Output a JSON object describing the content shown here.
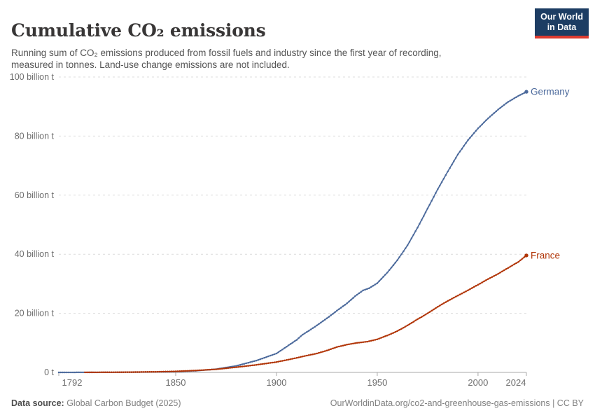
{
  "header": {
    "title": "Cumulative CO₂ emissions",
    "subtitle": "Running sum of CO₂ emissions produced from fossil fuels and industry since the first year of recording,\nmeasured in tonnes. Land-use change emissions are not included."
  },
  "logo": {
    "line1": "Our World",
    "line2": "in Data",
    "bg_color": "#1d3d63",
    "accent_color": "#dc3a2f"
  },
  "footer": {
    "data_source_label": "Data source:",
    "data_source_value": " Global Carbon Budget (2025)",
    "attribution": "OurWorldinData.org/co2-and-greenhouse-gas-emissions | CC BY"
  },
  "chart_data": {
    "type": "line",
    "title": "Cumulative CO₂ emissions",
    "xlabel": "",
    "ylabel": "",
    "unit": "billion tonnes CO₂",
    "xlim": [
      1792,
      2024
    ],
    "ylim": [
      0,
      100
    ],
    "grid": "horizontal-dashed",
    "legend_position": "line-end-labels",
    "x_ticks": [
      {
        "year": 1792,
        "label": "1792"
      },
      {
        "year": 1850,
        "label": "1850"
      },
      {
        "year": 1900,
        "label": "1900"
      },
      {
        "year": 1950,
        "label": "1950"
      },
      {
        "year": 2000,
        "label": "2000"
      },
      {
        "year": 2024,
        "label": "2024"
      }
    ],
    "y_ticks": [
      {
        "value": 0,
        "label": "0 t"
      },
      {
        "value": 20,
        "label": "20 billion t"
      },
      {
        "value": 40,
        "label": "40 billion t"
      },
      {
        "value": 60,
        "label": "60 billion t"
      },
      {
        "value": 80,
        "label": "80 billion t"
      },
      {
        "value": 100,
        "label": "100 billion t"
      }
    ],
    "series": [
      {
        "name": "Germany",
        "color": "#4C6A9C",
        "points": [
          [
            1792,
            0.003
          ],
          [
            1800,
            0.01
          ],
          [
            1810,
            0.03
          ],
          [
            1820,
            0.05
          ],
          [
            1830,
            0.09
          ],
          [
            1840,
            0.15
          ],
          [
            1850,
            0.25
          ],
          [
            1860,
            0.55
          ],
          [
            1870,
            1.1
          ],
          [
            1880,
            2.2
          ],
          [
            1890,
            4.0
          ],
          [
            1900,
            6.4
          ],
          [
            1910,
            11.0
          ],
          [
            1913,
            12.8
          ],
          [
            1917,
            14.5
          ],
          [
            1920,
            15.9
          ],
          [
            1925,
            18.3
          ],
          [
            1930,
            20.9
          ],
          [
            1935,
            23.4
          ],
          [
            1939,
            25.8
          ],
          [
            1943,
            27.8
          ],
          [
            1946,
            28.5
          ],
          [
            1950,
            30.2
          ],
          [
            1955,
            33.8
          ],
          [
            1960,
            38.0
          ],
          [
            1965,
            43.0
          ],
          [
            1970,
            49.0
          ],
          [
            1975,
            55.5
          ],
          [
            1980,
            62.0
          ],
          [
            1985,
            68.0
          ],
          [
            1990,
            73.8
          ],
          [
            1995,
            78.6
          ],
          [
            2000,
            82.6
          ],
          [
            2005,
            86.0
          ],
          [
            2010,
            89.0
          ],
          [
            2015,
            91.6
          ],
          [
            2020,
            93.6
          ],
          [
            2024,
            95.0
          ]
        ]
      },
      {
        "name": "France",
        "color": "#B13507",
        "points": [
          [
            1805,
            0.02
          ],
          [
            1810,
            0.03
          ],
          [
            1820,
            0.06
          ],
          [
            1830,
            0.11
          ],
          [
            1840,
            0.2
          ],
          [
            1850,
            0.35
          ],
          [
            1860,
            0.65
          ],
          [
            1870,
            1.05
          ],
          [
            1880,
            1.75
          ],
          [
            1890,
            2.55
          ],
          [
            1900,
            3.5
          ],
          [
            1910,
            4.9
          ],
          [
            1913,
            5.4
          ],
          [
            1920,
            6.4
          ],
          [
            1925,
            7.4
          ],
          [
            1930,
            8.6
          ],
          [
            1935,
            9.4
          ],
          [
            1940,
            10.0
          ],
          [
            1945,
            10.4
          ],
          [
            1950,
            11.2
          ],
          [
            1955,
            12.5
          ],
          [
            1960,
            14.0
          ],
          [
            1965,
            15.9
          ],
          [
            1970,
            18.0
          ],
          [
            1975,
            20.0
          ],
          [
            1980,
            22.2
          ],
          [
            1985,
            24.2
          ],
          [
            1990,
            26.0
          ],
          [
            1995,
            27.8
          ],
          [
            2000,
            29.7
          ],
          [
            2005,
            31.6
          ],
          [
            2010,
            33.4
          ],
          [
            2015,
            35.4
          ],
          [
            2020,
            37.4
          ],
          [
            2024,
            39.6
          ]
        ]
      }
    ]
  }
}
